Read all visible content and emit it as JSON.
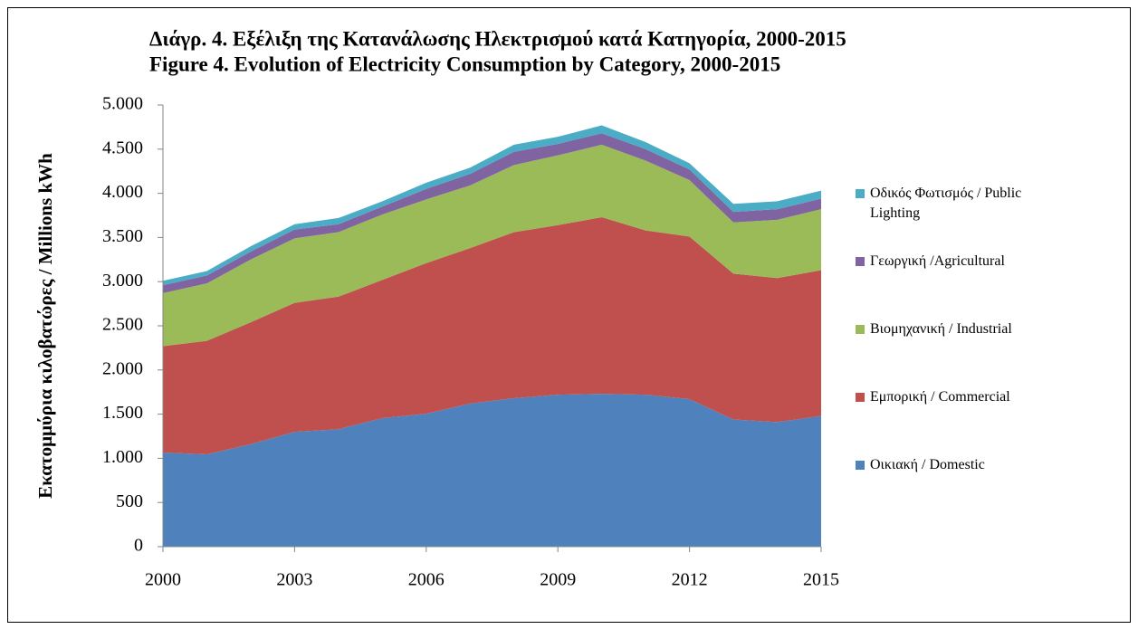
{
  "chart_data": {
    "type": "stacked_area",
    "title": "Διάγρ.  4. Εξέλιξη της Κατανάλωσης Ηλεκτρισμού κατά Κατηγορία, 2000-2015",
    "subtitle": "Figure 4. Evolution of Electricity Consumption by Category, 2000-2015",
    "y_label": "Εκατομμύρια κιλοβατώρες / Millions kWh",
    "x": [
      2000,
      2001,
      2002,
      2003,
      2004,
      2005,
      2006,
      2007,
      2008,
      2009,
      2010,
      2011,
      2012,
      2013,
      2014,
      2015
    ],
    "series": [
      {
        "name": "Οικιακή / Domestic",
        "color": "#4f81bd",
        "values": [
          1066,
          1045,
          1160,
          1300,
          1330,
          1455,
          1505,
          1620,
          1680,
          1720,
          1730,
          1720,
          1670,
          1440,
          1410,
          1480
        ]
      },
      {
        "name": "Εμπορική / Commercial",
        "color": "#c0504d",
        "values": [
          1204,
          1285,
          1380,
          1460,
          1500,
          1565,
          1705,
          1760,
          1880,
          1920,
          2000,
          1860,
          1840,
          1650,
          1630,
          1650
        ]
      },
      {
        "name": "Βιομηχανική / Industrial",
        "color": "#9bbb59",
        "values": [
          600,
          650,
          710,
          730,
          730,
          740,
          720,
          710,
          760,
          790,
          820,
          790,
          640,
          580,
          660,
          690
        ]
      },
      {
        "name": "Γεωργική  /Agricultural",
        "color": "#8064a2",
        "values": [
          90,
          90,
          90,
          100,
          90,
          90,
          120,
          130,
          150,
          130,
          130,
          130,
          120,
          120,
          120,
          120
        ]
      },
      {
        "name": "Οδικός Φωτισμός / Public Lighting",
        "color": "#4bacc6",
        "values": [
          50,
          50,
          60,
          60,
          70,
          60,
          70,
          70,
          80,
          80,
          90,
          80,
          70,
          90,
          90,
          90
        ]
      }
    ],
    "xlim": [
      2000,
      2015
    ],
    "xticks": [
      2000,
      2003,
      2006,
      2009,
      2012,
      2015
    ],
    "ylim": [
      0,
      5000
    ],
    "yticks": [
      0,
      500,
      {
        "value": 1000,
        "label": "1.000"
      },
      {
        "value": 1500,
        "label": "1.500"
      },
      {
        "value": 2000,
        "label": "2.000"
      },
      {
        "value": 2500,
        "label": "2.500"
      },
      {
        "value": 3000,
        "label": "3.000"
      },
      {
        "value": 3500,
        "label": "3.500"
      },
      {
        "value": 4000,
        "label": "4.000"
      },
      {
        "value": 4500,
        "label": "4.500"
      },
      {
        "value": 5000,
        "label": "5.000"
      }
    ],
    "legend": "right"
  }
}
